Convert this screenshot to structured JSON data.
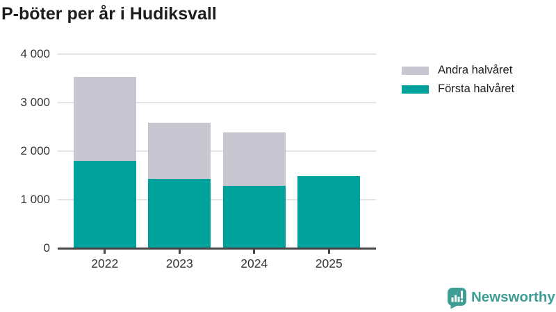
{
  "header": {
    "title": "P-böter per år i Hudiksvall"
  },
  "chart_data": {
    "type": "bar",
    "stacked": true,
    "title": "P-böter per år i Hudiksvall",
    "categories": [
      "2022",
      "2023",
      "2024",
      "2025"
    ],
    "series": [
      {
        "name": "Första halvåret",
        "color": "#00a29b",
        "values": [
          1800,
          1430,
          1280,
          1480
        ]
      },
      {
        "name": "Andra halvåret",
        "color": "#c8c6d0",
        "values": [
          1730,
          1160,
          1100,
          0
        ]
      }
    ],
    "totals": [
      3530,
      2590,
      2380,
      1480
    ],
    "xlabel": "",
    "ylabel": "",
    "ylim": [
      0,
      4000
    ],
    "yticks": [
      {
        "value": 0,
        "label": "0"
      },
      {
        "value": 1000,
        "label": "1 000"
      },
      {
        "value": 2000,
        "label": "2 000"
      },
      {
        "value": 3000,
        "label": "3 000"
      },
      {
        "value": 4000,
        "label": "4 000"
      }
    ],
    "grid": true,
    "legend_position": "top-right",
    "legend": [
      {
        "label": "Andra halvåret",
        "color": "#c8c6d0"
      },
      {
        "label": "Första halvåret",
        "color": "#00a29b"
      }
    ]
  },
  "footer": {
    "brand": "Newsworthy",
    "brand_color": "#3e9d95"
  },
  "colors": {
    "first_half": "#00a29b",
    "second_half": "#c8c6d0",
    "axis": "#474747",
    "gridline": "#e4e4e4",
    "text": "#1d1d1b",
    "tick_text": "#343434",
    "background": "#ffffff"
  }
}
